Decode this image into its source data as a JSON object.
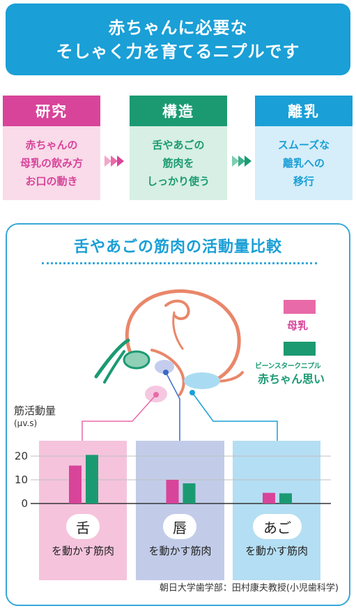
{
  "banner": {
    "line1": "赤ちゃんに必要な",
    "line2": "そしゃく力を育てるニプルです"
  },
  "steps": [
    {
      "title": "研究",
      "lines": [
        "赤ちゃんの",
        "母乳の飲み方",
        "お口の動き"
      ],
      "color": "#d8449a",
      "bg": "#f9dbe9",
      "text_color": "#d8449a"
    },
    {
      "title": "構造",
      "lines": [
        "舌やあごの",
        "筋肉を",
        "しっかり使う"
      ],
      "color": "#1b9a72",
      "bg": "#d7efe4",
      "text_color": "#1b9a72"
    },
    {
      "title": "離乳",
      "lines": [
        "スムーズな",
        "離乳への",
        "移行"
      ],
      "color": "#1a9fd6",
      "bg": "#d6eef9",
      "text_color": "#1a9fd6"
    }
  ],
  "panel": {
    "title": "舌やあごの筋肉の活動量比較"
  },
  "legend": {
    "a_label": "母乳",
    "b_label_small": "ビーンスタークニプル",
    "b_label": "赤ちゃん思い"
  },
  "credit": "朝日大学歯学部：田村康夫教授(小児歯科学)",
  "chart_data": {
    "type": "bar",
    "ylabel": "筋活動量",
    "yunit": "(μv.s)",
    "yticks": [
      "20",
      "10",
      "0"
    ],
    "ylim": [
      0,
      25
    ],
    "categories": [
      {
        "name": "舌",
        "sub": "を動かす筋肉"
      },
      {
        "name": "唇",
        "sub": "を動かす筋肉"
      },
      {
        "name": "あご",
        "sub": "を動かす筋肉"
      }
    ],
    "series": [
      {
        "name": "母乳",
        "color": "#d8449a",
        "values": [
          16,
          10,
          4.5
        ]
      },
      {
        "name": "赤ちゃん思い",
        "color": "#1b9a72",
        "values": [
          20.5,
          8.5,
          4.3
        ]
      }
    ],
    "group_colors": [
      "#f5c3dc",
      "#c2cce9",
      "#b4def3"
    ]
  }
}
